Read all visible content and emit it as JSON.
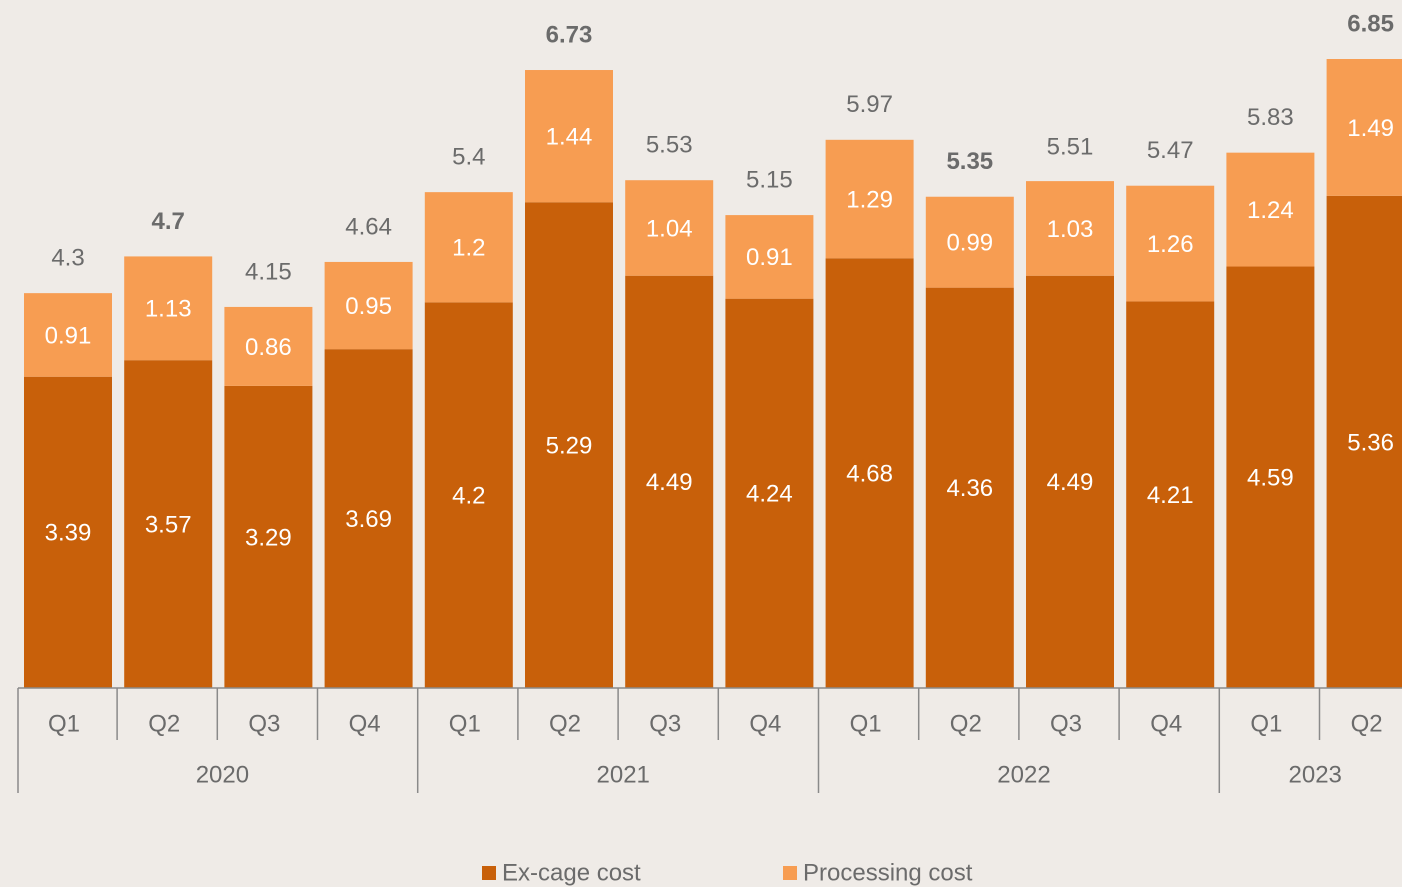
{
  "chart_data": {
    "type": "stacked_bar",
    "categories": [
      "Q1",
      "Q2",
      "Q3",
      "Q4",
      "Q1",
      "Q2",
      "Q3",
      "Q4",
      "Q1",
      "Q2",
      "Q3",
      "Q4",
      "Q1",
      "Q2"
    ],
    "years": [
      "2020",
      "2020",
      "2020",
      "2020",
      "2021",
      "2021",
      "2021",
      "2021",
      "2022",
      "2022",
      "2022",
      "2022",
      "2023",
      "2023"
    ],
    "series": [
      {
        "name": "Ex-cage cost",
        "color": "#c8600a",
        "values": [
          3.39,
          3.57,
          3.29,
          3.69,
          4.2,
          5.29,
          4.49,
          4.24,
          4.68,
          4.36,
          4.49,
          4.21,
          4.59,
          5.36
        ]
      },
      {
        "name": "Processing cost",
        "color": "#f79d52",
        "values": [
          0.91,
          1.13,
          0.86,
          0.95,
          1.2,
          1.44,
          1.04,
          0.91,
          1.29,
          0.99,
          1.03,
          1.26,
          1.24,
          1.49
        ]
      }
    ],
    "totals": [
      4.3,
      4.7,
      4.15,
      4.64,
      5.4,
      6.73,
      5.53,
      5.15,
      5.97,
      5.35,
      5.51,
      5.47,
      5.83,
      6.85
    ],
    "ylim": [
      0,
      6.85
    ]
  }
}
